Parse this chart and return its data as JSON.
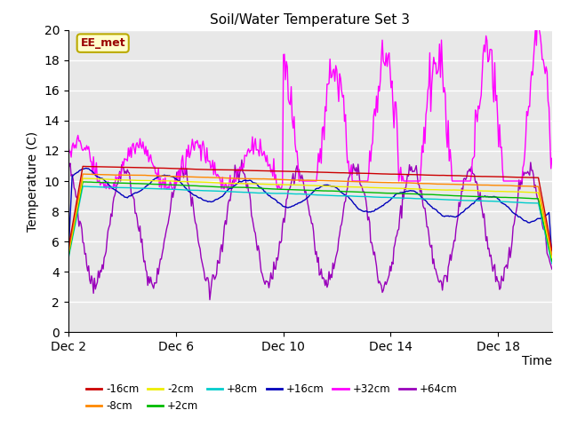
{
  "title": "Soil/Water Temperature Set 3",
  "xlabel": "Time",
  "ylabel": "Temperature (C)",
  "ylim": [
    0,
    20
  ],
  "xlim": [
    0,
    18
  ],
  "xtick_positions": [
    0,
    4,
    8,
    12,
    16
  ],
  "xtick_labels": [
    "Dec 2",
    "Dec 6",
    "Dec 10",
    "Dec 14",
    "Dec 18"
  ],
  "ytick_positions": [
    0,
    2,
    4,
    6,
    8,
    10,
    12,
    14,
    16,
    18,
    20
  ],
  "plot_bg": "#e8e8e8",
  "fig_bg": "#ffffff",
  "legend_label": "EE_met",
  "legend_bg": "#ffffcc",
  "legend_border": "#bbaa00",
  "legend_text_color": "#990000",
  "series_colors": [
    "#cc0000",
    "#ff8800",
    "#eeee00",
    "#00bb00",
    "#00cccc",
    "#0000bb",
    "#ff00ff",
    "#9900bb"
  ],
  "series_labels": [
    "-16cm",
    "-8cm",
    "-2cm",
    "+2cm",
    "+8cm",
    "+16cm",
    "+32cm",
    "+64cm"
  ]
}
